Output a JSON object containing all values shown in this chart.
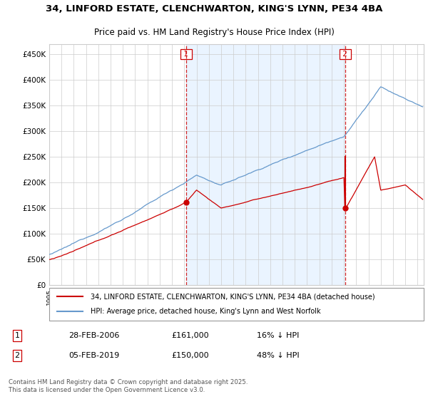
{
  "title1": "34, LINFORD ESTATE, CLENCHWARTON, KING'S LYNN, PE34 4BA",
  "title2": "Price paid vs. HM Land Registry's House Price Index (HPI)",
  "ylabel_ticks": [
    "£0",
    "£50K",
    "£100K",
    "£150K",
    "£200K",
    "£250K",
    "£300K",
    "£350K",
    "£400K",
    "£450K"
  ],
  "ytick_values": [
    0,
    50000,
    100000,
    150000,
    200000,
    250000,
    300000,
    350000,
    400000,
    450000
  ],
  "xlim_start": 1995.0,
  "xlim_end": 2025.5,
  "ylim_min": 0,
  "ylim_max": 470000,
  "vline1_x": 2006.15,
  "vline2_x": 2019.09,
  "purchase1_label": "1",
  "purchase1_date": "28-FEB-2006",
  "purchase1_price": "£161,000",
  "purchase1_hpi": "16% ↓ HPI",
  "purchase1_value": 161000,
  "purchase2_label": "2",
  "purchase2_date": "05-FEB-2019",
  "purchase2_price": "£150,000",
  "purchase2_hpi": "48% ↓ HPI",
  "purchase2_value": 150000,
  "legend_line1": "34, LINFORD ESTATE, CLENCHWARTON, KING'S LYNN, PE34 4BA (detached house)",
  "legend_line2": "HPI: Average price, detached house, King's Lynn and West Norfolk",
  "footer": "Contains HM Land Registry data © Crown copyright and database right 2025.\nThis data is licensed under the Open Government Licence v3.0.",
  "line_red_color": "#cc0000",
  "line_blue_color": "#6699cc",
  "shade_color": "#ddeeff",
  "bg_color": "#ffffff",
  "grid_color": "#cccccc",
  "vline_color": "#cc0000",
  "label_box_color": "#cc0000"
}
